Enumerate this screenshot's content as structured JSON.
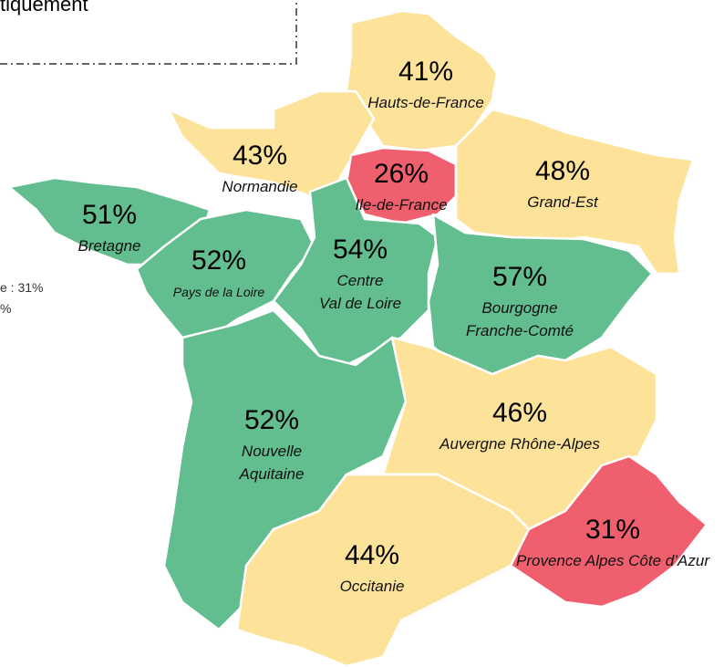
{
  "header": {
    "title": "tiquement"
  },
  "legend_fragment": [
    "e : 31%",
    "%"
  ],
  "regions": [
    {
      "name": [
        "Hauts-de-France"
      ],
      "value": "41%"
    },
    {
      "name": [
        "Normandie"
      ],
      "value": "43%"
    },
    {
      "name": [
        "Ile-de-France"
      ],
      "value": "26%"
    },
    {
      "name": [
        "Grand-Est"
      ],
      "value": "48%"
    },
    {
      "name": [
        "Bretagne"
      ],
      "value": "51%"
    },
    {
      "name": [
        "Pays de la Loire"
      ],
      "value": "52%"
    },
    {
      "name": [
        "Centre",
        "Val de Loire"
      ],
      "value": "54%"
    },
    {
      "name": [
        "Bourgogne",
        "Franche-Comté"
      ],
      "value": "57%"
    },
    {
      "name": [
        "Nouvelle",
        "Aquitaine"
      ],
      "value": "52%"
    },
    {
      "name": [
        "Auvergne Rhône-Alpes"
      ],
      "value": "46%"
    },
    {
      "name": [
        "Occitanie"
      ],
      "value": "44%"
    },
    {
      "name": [
        "Provence Alpes Côte d’Azur"
      ],
      "value": "31%"
    }
  ]
}
